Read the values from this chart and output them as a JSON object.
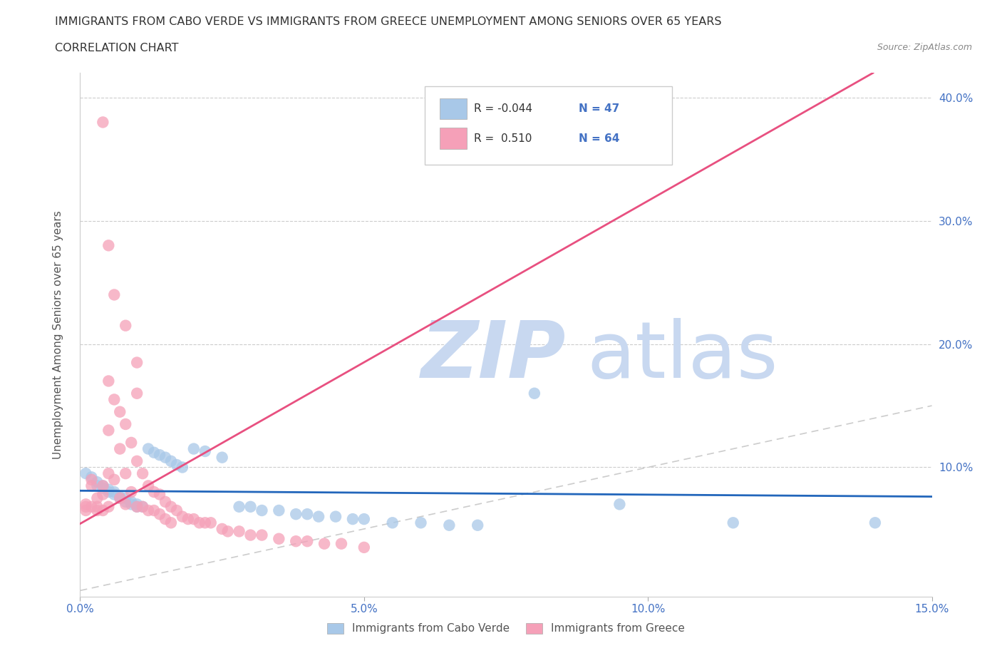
{
  "title_line1": "IMMIGRANTS FROM CABO VERDE VS IMMIGRANTS FROM GREECE UNEMPLOYMENT AMONG SENIORS OVER 65 YEARS",
  "title_line2": "CORRELATION CHART",
  "source": "Source: ZipAtlas.com",
  "ylabel_left": "Unemployment Among Seniors over 65 years",
  "xlim": [
    0.0,
    0.15
  ],
  "ylim": [
    -0.005,
    0.42
  ],
  "xticks": [
    0.0,
    0.05,
    0.1,
    0.15
  ],
  "xticklabels": [
    "0.0%",
    "5.0%",
    "10.0%",
    "15.0%"
  ],
  "yticks_right": [
    0.1,
    0.2,
    0.3,
    0.4
  ],
  "yticklabels_right": [
    "10.0%",
    "20.0%",
    "30.0%",
    "40.0%"
  ],
  "color_cabo": "#a8c8e8",
  "color_greece": "#f5a0b8",
  "line_color_cabo": "#2266bb",
  "line_color_greece": "#e85080",
  "diag_line_color": "#cccccc",
  "R_cabo": -0.044,
  "N_cabo": 47,
  "R_greece": 0.51,
  "N_greece": 64,
  "cabo_x": [
    0.001,
    0.002,
    0.003,
    0.003,
    0.004,
    0.004,
    0.005,
    0.005,
    0.006,
    0.006,
    0.007,
    0.007,
    0.008,
    0.008,
    0.009,
    0.009,
    0.01,
    0.01,
    0.011,
    0.012,
    0.013,
    0.014,
    0.015,
    0.016,
    0.017,
    0.018,
    0.02,
    0.022,
    0.025,
    0.028,
    0.03,
    0.032,
    0.035,
    0.038,
    0.04,
    0.042,
    0.045,
    0.048,
    0.05,
    0.055,
    0.06,
    0.065,
    0.07,
    0.08,
    0.095,
    0.115,
    0.14
  ],
  "cabo_y": [
    0.095,
    0.092,
    0.088,
    0.085,
    0.085,
    0.083,
    0.082,
    0.08,
    0.08,
    0.078,
    0.076,
    0.075,
    0.075,
    0.072,
    0.072,
    0.07,
    0.07,
    0.068,
    0.068,
    0.115,
    0.112,
    0.11,
    0.108,
    0.105,
    0.102,
    0.1,
    0.115,
    0.113,
    0.108,
    0.068,
    0.068,
    0.065,
    0.065,
    0.062,
    0.062,
    0.06,
    0.06,
    0.058,
    0.058,
    0.055,
    0.055,
    0.053,
    0.053,
    0.16,
    0.07,
    0.055,
    0.055
  ],
  "greece_x": [
    0.001,
    0.001,
    0.001,
    0.002,
    0.002,
    0.002,
    0.003,
    0.003,
    0.003,
    0.004,
    0.004,
    0.004,
    0.005,
    0.005,
    0.005,
    0.005,
    0.006,
    0.006,
    0.006,
    0.007,
    0.007,
    0.007,
    0.008,
    0.008,
    0.008,
    0.009,
    0.009,
    0.01,
    0.01,
    0.01,
    0.011,
    0.011,
    0.012,
    0.012,
    0.013,
    0.013,
    0.014,
    0.014,
    0.015,
    0.015,
    0.016,
    0.016,
    0.017,
    0.018,
    0.019,
    0.02,
    0.021,
    0.022,
    0.023,
    0.025,
    0.026,
    0.028,
    0.03,
    0.032,
    0.035,
    0.038,
    0.04,
    0.043,
    0.046,
    0.05,
    0.004,
    0.005,
    0.008,
    0.01
  ],
  "greece_y": [
    0.07,
    0.068,
    0.065,
    0.09,
    0.085,
    0.068,
    0.075,
    0.068,
    0.065,
    0.085,
    0.078,
    0.065,
    0.17,
    0.13,
    0.095,
    0.068,
    0.24,
    0.155,
    0.09,
    0.145,
    0.115,
    0.075,
    0.135,
    0.095,
    0.07,
    0.12,
    0.08,
    0.16,
    0.105,
    0.068,
    0.095,
    0.068,
    0.085,
    0.065,
    0.08,
    0.065,
    0.078,
    0.062,
    0.072,
    0.058,
    0.068,
    0.055,
    0.065,
    0.06,
    0.058,
    0.058,
    0.055,
    0.055,
    0.055,
    0.05,
    0.048,
    0.048,
    0.045,
    0.045,
    0.042,
    0.04,
    0.04,
    0.038,
    0.038,
    0.035,
    0.38,
    0.28,
    0.215,
    0.185
  ],
  "watermark_zip": "ZIP",
  "watermark_atlas": "atlas",
  "watermark_color": "#c8d8f0",
  "legend_label_cabo": "Immigrants from Cabo Verde",
  "legend_label_greece": "Immigrants from Greece"
}
